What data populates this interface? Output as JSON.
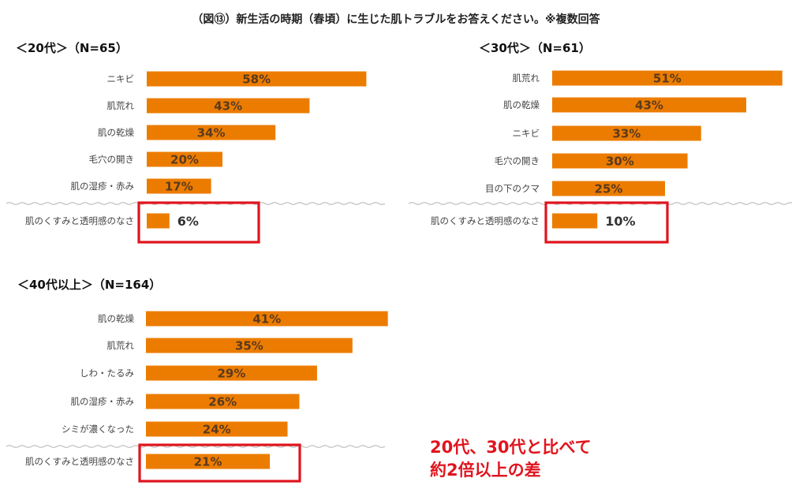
{
  "title": "（図⑬）新生活の時期（春頃）に生じた肌トラブルをお答えください。※複数回答",
  "panels": [
    {
      "title": "＜20代＞（N=65）"
    },
    {
      "title": "＜30代＞（N=61）"
    },
    {
      "title": "＜40代以上＞（N=164）"
    }
  ],
  "note": {
    "line1": "20代、30代と比べて",
    "line2": "約2倍以上の差"
  },
  "colors": {
    "bar": "#ec7c00",
    "highlight_box": "#e0141e",
    "separator": "#bfbfbf"
  },
  "chart_data": [
    {
      "type": "bar",
      "orientation": "horizontal",
      "title": "＜20代＞（N=65）",
      "categories": [
        "ニキビ",
        "肌荒れ",
        "肌の乾燥",
        "毛穴の開き",
        "肌の湿疹・赤み",
        "肌のくすみと透明感のなさ"
      ],
      "values": [
        58,
        43,
        34,
        20,
        17,
        6
      ],
      "labels": [
        "58%",
        "43%",
        "34%",
        "20%",
        "17%",
        "6%"
      ],
      "highlighted": "肌のくすみと透明感のなさ"
    },
    {
      "type": "bar",
      "orientation": "horizontal",
      "title": "＜30代＞（N=61）",
      "categories": [
        "肌荒れ",
        "肌の乾燥",
        "ニキビ",
        "毛穴の開き",
        "目の下のクマ",
        "肌のくすみと透明感のなさ"
      ],
      "values": [
        51,
        43,
        33,
        30,
        25,
        10
      ],
      "labels": [
        "51%",
        "43%",
        "33%",
        "30%",
        "25%",
        "10%"
      ],
      "highlighted": "肌のくすみと透明感のなさ"
    },
    {
      "type": "bar",
      "orientation": "horizontal",
      "title": "＜40代以上＞（N=164）",
      "categories": [
        "肌の乾燥",
        "肌荒れ",
        "しわ・たるみ",
        "肌の湿疹・赤み",
        "シミが濃くなった",
        "肌のくすみと透明感のなさ"
      ],
      "values": [
        41,
        35,
        29,
        26,
        24,
        21
      ],
      "labels": [
        "41%",
        "35%",
        "29%",
        "26%",
        "24%",
        "21%"
      ],
      "highlighted": "肌のくすみと透明感のなさ"
    }
  ]
}
